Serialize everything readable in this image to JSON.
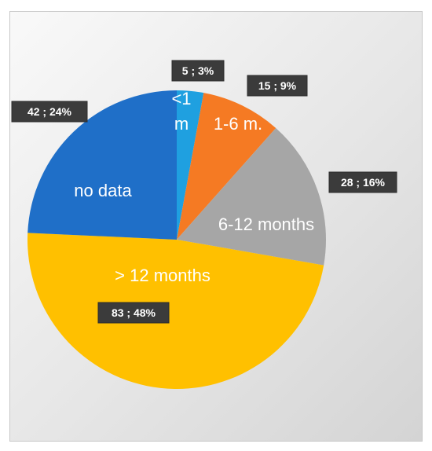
{
  "chart_data": {
    "type": "pie",
    "start_angle_deg": 0,
    "direction": "clockwise",
    "slices": [
      {
        "label": "<1 m.",
        "value": 5,
        "percent": "3%",
        "data_label": "5 ; 3%",
        "color": "#1fa0e0"
      },
      {
        "label": "1-6 m.",
        "value": 15,
        "percent": "9%",
        "data_label": "15 ; 9%",
        "color": "#f57a23"
      },
      {
        "label": "6-12 months",
        "value": 28,
        "percent": "16%",
        "data_label": "28 ; 16%",
        "color": "#a6a6a6"
      },
      {
        "label": "> 12 months",
        "value": 83,
        "percent": "48%",
        "data_label": "83 ; 48%",
        "color": "#ffc000"
      },
      {
        "label": "no data",
        "value": 42,
        "percent": "24%",
        "data_label": "42 ; 24%",
        "color": "#1f6fc8"
      }
    ]
  }
}
